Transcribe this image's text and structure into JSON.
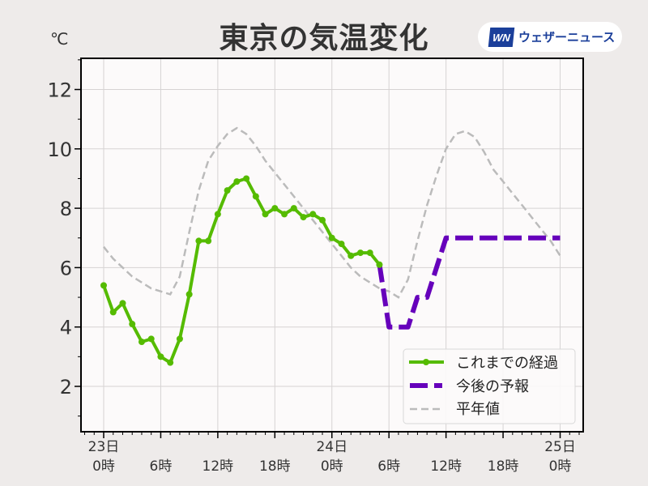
{
  "header": {
    "title": "東京の気温変化",
    "unit": "℃",
    "logo_mark": "WN",
    "logo_text": "ウェザーニュース"
  },
  "colors": {
    "observed": "#55bb00",
    "forecast": "#6600bb",
    "normal": "#bbbbbb",
    "plot_bg": "#fcfafa",
    "page_bg": "#eeebea",
    "logo_blue": "#1b3f9a"
  },
  "chart_data": {
    "type": "line",
    "title": "東京の気温変化",
    "ylabel": "℃",
    "xlabel": "",
    "ylim": [
      0.5,
      13
    ],
    "xlim_hours": [
      -2.4,
      50.4
    ],
    "y_ticks": [
      2,
      4,
      6,
      8,
      10,
      12
    ],
    "x_ticks": [
      {
        "hour": 0,
        "line1": "23日",
        "line2": "0時"
      },
      {
        "hour": 6,
        "line1": "",
        "line2": "6時"
      },
      {
        "hour": 12,
        "line1": "",
        "line2": "12時"
      },
      {
        "hour": 18,
        "line1": "",
        "line2": "18時"
      },
      {
        "hour": 24,
        "line1": "24日",
        "line2": "0時"
      },
      {
        "hour": 30,
        "line1": "",
        "line2": "6時"
      },
      {
        "hour": 36,
        "line1": "",
        "line2": "12時"
      },
      {
        "hour": 42,
        "line1": "",
        "line2": "18時"
      },
      {
        "hour": 48,
        "line1": "25日",
        "line2": "0時"
      }
    ],
    "grid": true,
    "legend_position": "lower right",
    "series": [
      {
        "name": "これまでの経過",
        "style": "solid-marker",
        "x": [
          0,
          1,
          2,
          3,
          4,
          5,
          6,
          7,
          8,
          9,
          10,
          11,
          12,
          13,
          14,
          15,
          16,
          17,
          18,
          19,
          20,
          21,
          22,
          23,
          24,
          25,
          26,
          27,
          28,
          29
        ],
        "values": [
          5.4,
          4.5,
          4.8,
          4.1,
          3.5,
          3.6,
          3.0,
          2.8,
          3.6,
          5.1,
          6.9,
          6.9,
          7.8,
          8.6,
          8.9,
          9.0,
          8.4,
          7.8,
          8.0,
          7.8,
          8.0,
          7.7,
          7.8,
          7.6,
          7.0,
          6.8,
          6.4,
          6.5,
          6.5,
          6.1
        ]
      },
      {
        "name": "今後の予報",
        "style": "dashed-thick",
        "x": [
          29,
          30,
          32,
          33,
          34,
          36,
          48
        ],
        "values": [
          6.1,
          4.0,
          4.0,
          5.0,
          5.0,
          7.0,
          7.0
        ]
      },
      {
        "name": "平年値",
        "style": "dashed-thin",
        "x": [
          0,
          1,
          2,
          3,
          4,
          5,
          6,
          7,
          8,
          9,
          10,
          11,
          12,
          13,
          14,
          15,
          16,
          17,
          18,
          19,
          20,
          21,
          22,
          23,
          24,
          25,
          26,
          27,
          28,
          29,
          30,
          31,
          32,
          33,
          34,
          35,
          36,
          37,
          38,
          39,
          40,
          41,
          42,
          43,
          44,
          45,
          46,
          47,
          48
        ],
        "values": [
          6.7,
          6.3,
          6.0,
          5.7,
          5.5,
          5.3,
          5.2,
          5.1,
          5.7,
          7.2,
          8.6,
          9.6,
          10.1,
          10.5,
          10.7,
          10.5,
          10.1,
          9.6,
          9.2,
          8.8,
          8.4,
          8.0,
          7.6,
          7.2,
          6.8,
          6.4,
          6.0,
          5.7,
          5.5,
          5.3,
          5.2,
          5.0,
          5.6,
          6.9,
          8.1,
          9.1,
          10.0,
          10.5,
          10.6,
          10.4,
          9.9,
          9.3,
          8.9,
          8.5,
          8.1,
          7.7,
          7.3,
          6.9,
          6.4
        ]
      }
    ]
  },
  "legend": {
    "items": [
      {
        "label": "これまでの経過"
      },
      {
        "label": "今後の予報"
      },
      {
        "label": "平年値"
      }
    ]
  }
}
